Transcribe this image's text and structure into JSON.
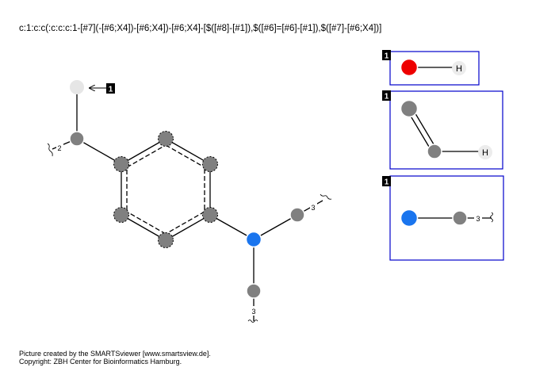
{
  "smarts": "c:1:c:c(:c:c:c:1-[#7](-[#6;X4])-[#6;X4])-[#6;X4]-[$([#8]-[#1]),$([#6]=[#6]-[#1]),$([#7]-[#6;X4])]",
  "footer": {
    "line1": "Picture created by the SMARTSviewer [www.smartsview.de].",
    "line2": "Copyright: ZBH Center for Bioinformatics Hamburg."
  },
  "main_molecule": {
    "recursive_label": "1",
    "substituent_count_1": "2",
    "substituent_count_2": "3",
    "substituent_count_3": "3"
  },
  "recursive_boxes": [
    {
      "label": "1",
      "end_atom": "H"
    },
    {
      "label": "1",
      "end_atom": "H"
    },
    {
      "label": "1",
      "count": "3"
    }
  ],
  "colors": {
    "carbon": "#808080",
    "oxygen": "#ee0000",
    "nitrogen": "#1a75ee",
    "hydrogen": "#e8e8e8",
    "placeholder": "#e6e6e6",
    "box_border": "#0000cc"
  }
}
